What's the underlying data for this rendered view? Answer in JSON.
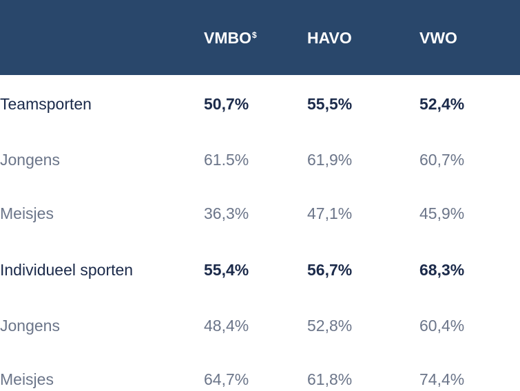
{
  "chart_data": {
    "type": "table",
    "columns": [
      {
        "label": "VMBO",
        "sup": "$"
      },
      {
        "label": "HAVO",
        "sup": ""
      },
      {
        "label": "VWO",
        "sup": ""
      }
    ],
    "rows": [
      {
        "label": "Teamsporten",
        "style": "bold",
        "values": [
          "50,7%",
          "55,5%",
          "52,4%"
        ]
      },
      {
        "label": "Jongens",
        "style": "light",
        "values": [
          "61.5%",
          "61,9%",
          "60,7%"
        ]
      },
      {
        "label": "Meisjes",
        "style": "light",
        "values": [
          "36,3%",
          "47,1%",
          "45,9%"
        ]
      },
      {
        "label": "Individueel sporten",
        "style": "bold",
        "values": [
          "55,4%",
          "56,7%",
          "68,3%"
        ]
      },
      {
        "label": "Jongens",
        "style": "light",
        "values": [
          "48,4%",
          "52,8%",
          "60,4%"
        ]
      },
      {
        "label": "Meisjes",
        "style": "light",
        "values": [
          "64,7%",
          "61,8%",
          "74,4%"
        ]
      }
    ]
  },
  "colors": {
    "header_bg": "#29476b",
    "header_text": "#ffffff",
    "bold_text": "#1b2a4a",
    "light_text": "#6b7589"
  }
}
